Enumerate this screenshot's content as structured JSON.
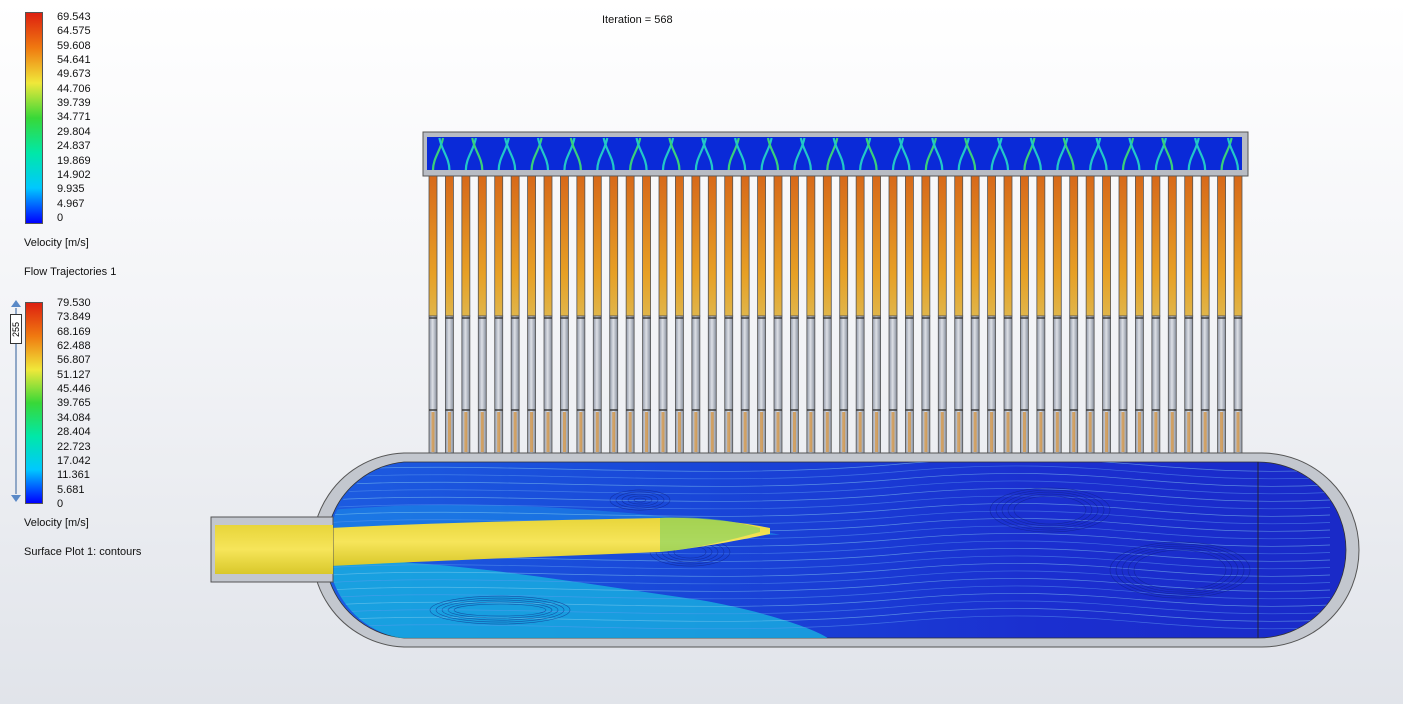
{
  "iteration_label": "Iteration = 568",
  "legends": [
    {
      "title": "Velocity [m/s]",
      "values": [
        "69.543",
        "64.575",
        "59.608",
        "54.641",
        "49.673",
        "44.706",
        "39.739",
        "34.771",
        "29.804",
        "24.837",
        "19.869",
        "14.902",
        "9.935",
        "4.967",
        "0"
      ]
    },
    {
      "title": "Velocity [m/s]",
      "values": [
        "79.530",
        "73.849",
        "68.169",
        "62.488",
        "56.807",
        "51.127",
        "45.446",
        "39.765",
        "34.084",
        "28.404",
        "22.723",
        "17.042",
        "11.361",
        "5.681",
        "0"
      ]
    }
  ],
  "labels": {
    "flow_trajectories": "Flow Trajectories 1",
    "surface_plot": "Surface Plot 1: contours"
  },
  "slider": {
    "value": "255"
  },
  "colors": {
    "scale": [
      "#0000ff",
      "#00c8ff",
      "#00e8a8",
      "#38d838",
      "#f0e83a",
      "#f07a10",
      "#dd2010"
    ],
    "background": "#eef0f4"
  }
}
